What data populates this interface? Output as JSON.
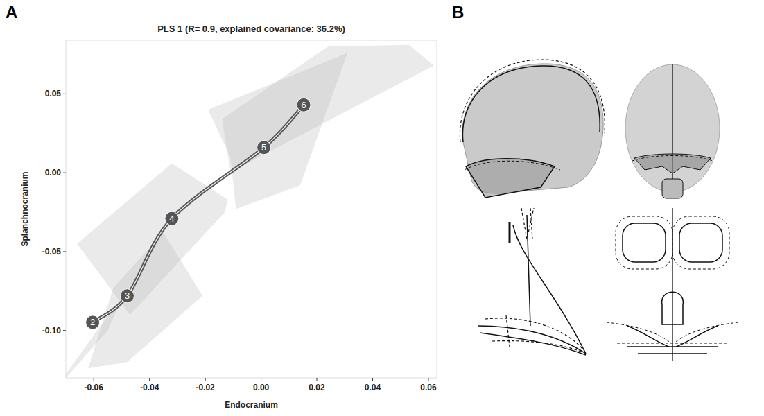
{
  "panel_labels": [
    "A",
    "B"
  ],
  "chart_data": {
    "type": "line",
    "title": "PLS 1 (R= 0.9, explained covariance: 36.2%)",
    "x_label": "Endocranium",
    "y_label": "Splanchnocranium",
    "xlim": [
      -0.07,
      0.063
    ],
    "ylim": [
      -0.13,
      0.084
    ],
    "xticks": [
      -0.06,
      -0.04,
      -0.02,
      {
        "value": 0,
        "label": "0.00"
      },
      0.02,
      0.04,
      0.06
    ],
    "yticks": [
      {
        "value": -0.1,
        "label": "-0.10"
      },
      -0.05,
      {
        "value": 0,
        "label": "0.00"
      },
      0.05
    ],
    "series": [
      {
        "color": "#555555",
        "marker": "circle",
        "x": [
          -0.0604,
          -0.048,
          -0.032,
          0.001,
          0.0153
        ],
        "values": [
          -0.0948,
          -0.078,
          -0.029,
          0.016,
          0.043
        ]
      }
    ],
    "point_labels": [
      2,
      3,
      4,
      5,
      6
    ],
    "hulls": [
      [
        [
          -0.075,
          -0.14
        ],
        [
          -0.058,
          -0.098
        ],
        [
          -0.05,
          -0.08
        ],
        [
          -0.055,
          -0.1
        ]
      ],
      [
        [
          -0.062,
          -0.124
        ],
        [
          -0.053,
          -0.073
        ],
        [
          -0.035,
          -0.038
        ],
        [
          -0.021,
          -0.078
        ],
        [
          -0.048,
          -0.12
        ]
      ],
      [
        [
          -0.066,
          -0.045
        ],
        [
          -0.032,
          0.006
        ],
        [
          -0.012,
          -0.017
        ],
        [
          -0.013,
          -0.025
        ],
        [
          -0.047,
          -0.09
        ]
      ],
      [
        [
          -0.019,
          0.04
        ],
        [
          0.031,
          0.076
        ],
        [
          0.014,
          -0.008
        ],
        [
          -0.009,
          -0.023
        ],
        [
          -0.011,
          0.01
        ]
      ],
      [
        [
          -0.014,
          0.034
        ],
        [
          0.024,
          0.08
        ],
        [
          0.053,
          0.081
        ],
        [
          0.062,
          0.068
        ],
        [
          -0.004,
          0.007
        ],
        [
          -0.011,
          0.001
        ]
      ]
    ]
  }
}
